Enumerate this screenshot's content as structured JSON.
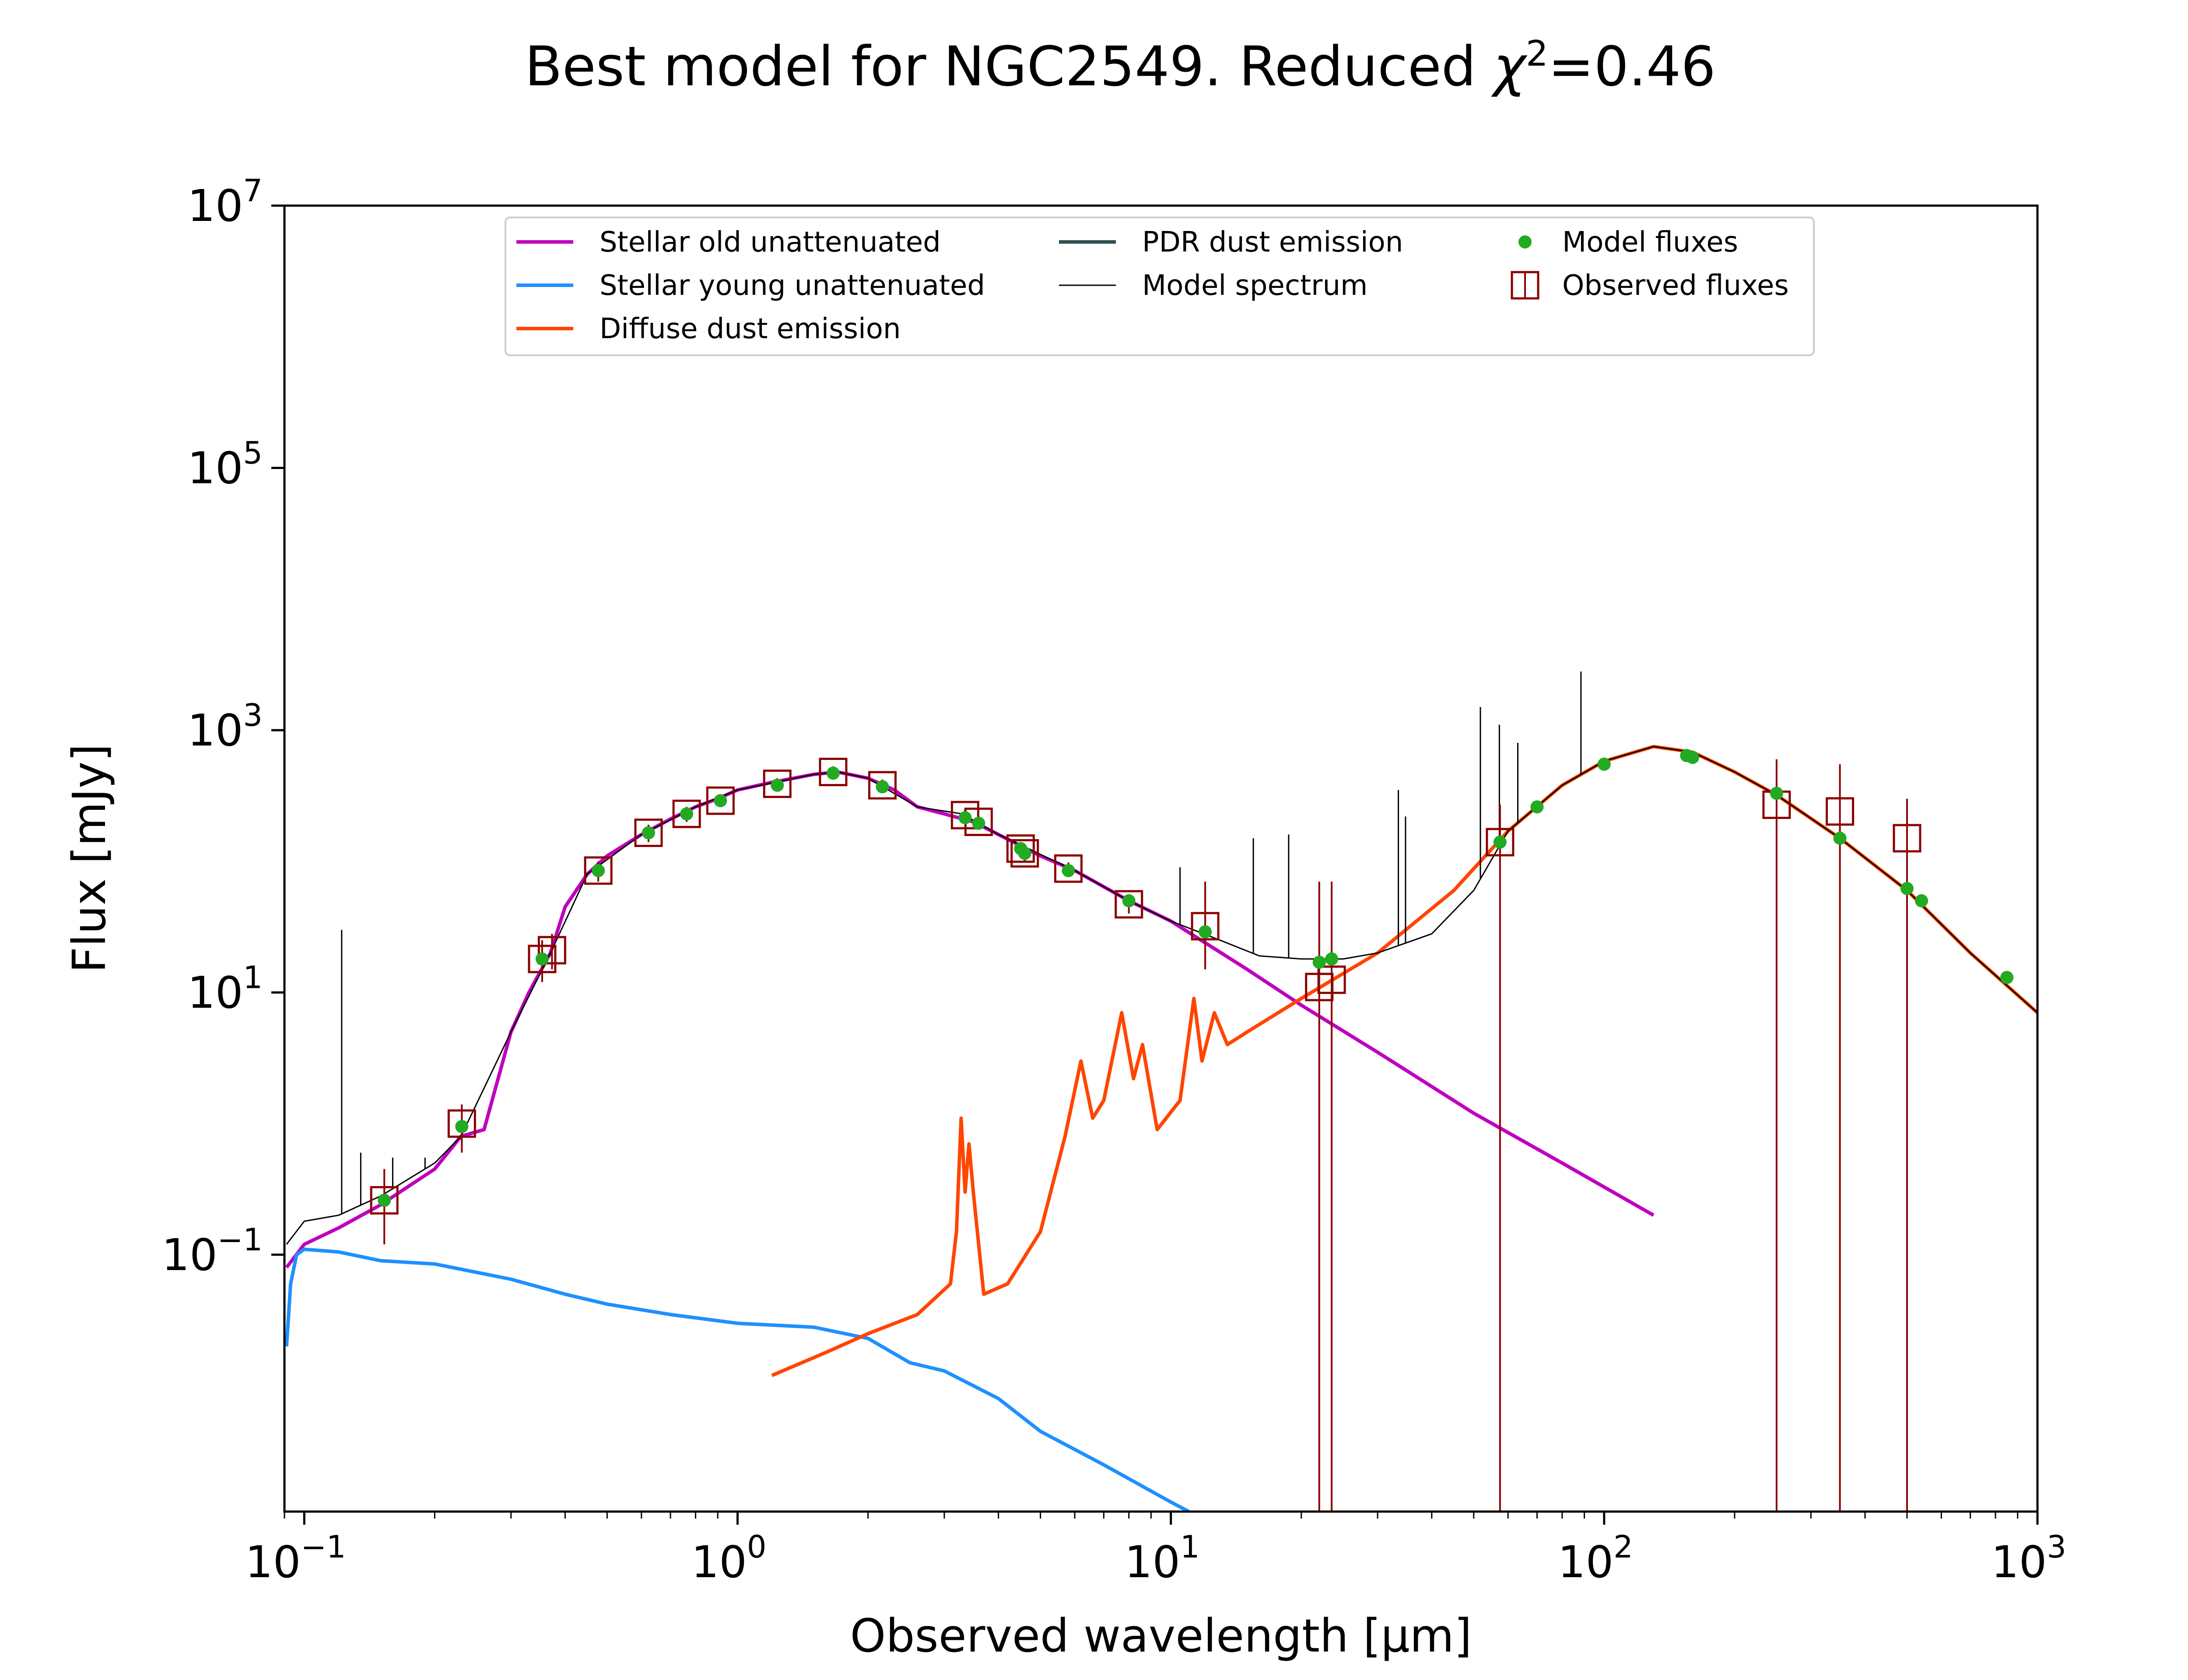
{
  "chart_data": {
    "type": "line",
    "title": "Best model for NGC2549. Reduced χ²=0.46",
    "title_parts": {
      "prefix": "Best model for NGC2549. Reduced ",
      "chi": "χ",
      "sup": "2",
      "suffix": "=0.46"
    },
    "xlabel": "Observed wavelength [μm]",
    "ylabel": "Flux [mJy]",
    "x_scale": "log",
    "y_scale": "log",
    "xlim": [
      0.09,
      1000
    ],
    "ylim": [
      0.0011,
      10000000
    ],
    "x_ticks": [
      {
        "value": 0.1,
        "base": "10",
        "exp": "−1"
      },
      {
        "value": 1,
        "base": "10",
        "exp": "0"
      },
      {
        "value": 10,
        "base": "10",
        "exp": "1"
      },
      {
        "value": 100,
        "base": "10",
        "exp": "2"
      },
      {
        "value": 1000,
        "base": "10",
        "exp": "3"
      }
    ],
    "y_ticks": [
      {
        "value": 0.1,
        "base": "10",
        "exp": "−1"
      },
      {
        "value": 10,
        "base": "10",
        "exp": "1"
      },
      {
        "value": 1000,
        "base": "10",
        "exp": "3"
      },
      {
        "value": 100000,
        "base": "10",
        "exp": "5"
      },
      {
        "value": 10000000,
        "base": "10",
        "exp": "7"
      }
    ],
    "grid": false,
    "legend_position": "top-center",
    "legend": [
      {
        "label": "Stellar old unattenuated",
        "color": "#bf00bf",
        "kind": "line"
      },
      {
        "label": "Stellar young unattenuated",
        "color": "#1e90ff",
        "kind": "line"
      },
      {
        "label": "Diffuse dust emission",
        "color": "#ff4500",
        "kind": "line"
      },
      {
        "label": "PDR dust emission",
        "color": "#2f4f4f",
        "kind": "line"
      },
      {
        "label": "Model spectrum",
        "color": "#000000",
        "kind": "thin-line"
      },
      {
        "label": "Model fluxes",
        "color": "#22aa22",
        "kind": "dot"
      },
      {
        "label": "Observed fluxes",
        "color": "#8b0000",
        "kind": "square"
      }
    ],
    "series": [
      {
        "name": "Stellar old unattenuated",
        "color": "#bf00bf",
        "points": [
          [
            0.091,
            0.08
          ],
          [
            0.1,
            0.12
          ],
          [
            0.12,
            0.16
          ],
          [
            0.15,
            0.24
          ],
          [
            0.2,
            0.45
          ],
          [
            0.23,
            0.8
          ],
          [
            0.26,
            0.9
          ],
          [
            0.3,
            5
          ],
          [
            0.33,
            10
          ],
          [
            0.37,
            20
          ],
          [
            0.4,
            45
          ],
          [
            0.45,
            80
          ],
          [
            0.5,
            110
          ],
          [
            0.6,
            160
          ],
          [
            0.7,
            210
          ],
          [
            0.8,
            260
          ],
          [
            0.9,
            300
          ],
          [
            1.0,
            350
          ],
          [
            1.2,
            400
          ],
          [
            1.5,
            460
          ],
          [
            1.7,
            480
          ],
          [
            2.0,
            430
          ],
          [
            2.3,
            350
          ],
          [
            2.6,
            260
          ],
          [
            3.0,
            230
          ],
          [
            3.5,
            200
          ],
          [
            4.0,
            160
          ],
          [
            5.0,
            110
          ],
          [
            6.0,
            85
          ],
          [
            8.0,
            50
          ],
          [
            10.0,
            35
          ],
          [
            15.0,
            15
          ],
          [
            20.0,
            8
          ],
          [
            30.0,
            3.5
          ],
          [
            50.0,
            1.2
          ],
          [
            80.0,
            0.5
          ],
          [
            130.0,
            0.2
          ]
        ]
      },
      {
        "name": "Stellar young unattenuated",
        "color": "#1e90ff",
        "points": [
          [
            0.091,
            0.02
          ],
          [
            0.093,
            0.06
          ],
          [
            0.096,
            0.1
          ],
          [
            0.1,
            0.11
          ],
          [
            0.12,
            0.105
          ],
          [
            0.15,
            0.09
          ],
          [
            0.2,
            0.085
          ],
          [
            0.3,
            0.065
          ],
          [
            0.4,
            0.05
          ],
          [
            0.5,
            0.042
          ],
          [
            0.7,
            0.035
          ],
          [
            1.0,
            0.03
          ],
          [
            1.5,
            0.028
          ],
          [
            2.0,
            0.023
          ],
          [
            2.5,
            0.015
          ],
          [
            3.0,
            0.013
          ],
          [
            4.0,
            0.008
          ],
          [
            5.0,
            0.0045
          ],
          [
            7.0,
            0.0025
          ],
          [
            10.0,
            0.0013
          ],
          [
            11.0,
            0.0011
          ]
        ]
      },
      {
        "name": "Diffuse dust emission",
        "color": "#ff4500",
        "points": [
          [
            1.2,
            0.012
          ],
          [
            1.6,
            0.018
          ],
          [
            2.0,
            0.025
          ],
          [
            2.6,
            0.035
          ],
          [
            3.1,
            0.06
          ],
          [
            3.2,
            0.15
          ],
          [
            3.28,
            1.1
          ],
          [
            3.35,
            0.3
          ],
          [
            3.42,
            0.7
          ],
          [
            3.5,
            0.3
          ],
          [
            3.7,
            0.05
          ],
          [
            4.2,
            0.06
          ],
          [
            5.0,
            0.15
          ],
          [
            5.7,
            0.8
          ],
          [
            6.2,
            3.0
          ],
          [
            6.6,
            1.1
          ],
          [
            7.0,
            1.5
          ],
          [
            7.7,
            7.0
          ],
          [
            8.2,
            2.2
          ],
          [
            8.6,
            4.0
          ],
          [
            9.3,
            0.9
          ],
          [
            10.5,
            1.5
          ],
          [
            11.3,
            9.0
          ],
          [
            11.8,
            3.0
          ],
          [
            12.6,
            7.0
          ],
          [
            13.5,
            4.0
          ],
          [
            15.0,
            5.0
          ],
          [
            20.0,
            9.0
          ],
          [
            30.0,
            20.0
          ],
          [
            45.0,
            60.0
          ],
          [
            60.0,
            170.0
          ],
          [
            80.0,
            380.0
          ],
          [
            100.0,
            580.0
          ],
          [
            130.0,
            750.0
          ],
          [
            160.0,
            680.0
          ],
          [
            200.0,
            480.0
          ],
          [
            250.0,
            320.0
          ],
          [
            350.0,
            150.0
          ],
          [
            500.0,
            60.0
          ],
          [
            700.0,
            20.0
          ],
          [
            1000.0,
            7.0
          ]
        ]
      },
      {
        "name": "Model spectrum",
        "color": "#000000",
        "points": [
          [
            0.091,
            0.12
          ],
          [
            0.1,
            0.18
          ],
          [
            0.12,
            0.2
          ],
          [
            0.15,
            0.28
          ],
          [
            0.2,
            0.5
          ],
          [
            0.23,
            0.8
          ],
          [
            0.3,
            5
          ],
          [
            0.37,
            20
          ],
          [
            0.45,
            80
          ],
          [
            0.6,
            160
          ],
          [
            0.8,
            260
          ],
          [
            1.0,
            350
          ],
          [
            1.5,
            460
          ],
          [
            1.7,
            480
          ],
          [
            2.0,
            430
          ],
          [
            2.6,
            260
          ],
          [
            3.3,
            230
          ],
          [
            4.0,
            160
          ],
          [
            6.0,
            85
          ],
          [
            8.0,
            50
          ],
          [
            10.0,
            35
          ],
          [
            13.0,
            25
          ],
          [
            16.0,
            19
          ],
          [
            20.0,
            18
          ],
          [
            25.0,
            18
          ],
          [
            30.0,
            20
          ],
          [
            40.0,
            28
          ],
          [
            50.0,
            60
          ],
          [
            60.0,
            170
          ],
          [
            80.0,
            380
          ],
          [
            100.0,
            580
          ],
          [
            130.0,
            750
          ],
          [
            160.0,
            680
          ],
          [
            200.0,
            480
          ],
          [
            250.0,
            320
          ],
          [
            350.0,
            150
          ],
          [
            500.0,
            60
          ],
          [
            700.0,
            20
          ],
          [
            1000.0,
            7
          ]
        ]
      }
    ],
    "model_spectrum_lines": [
      {
        "x": 0.122,
        "y": 30
      },
      {
        "x": 0.135,
        "y": 0.6
      },
      {
        "x": 0.16,
        "y": 0.55
      },
      {
        "x": 0.19,
        "y": 0.55
      },
      {
        "x": 10.5,
        "y": 90
      },
      {
        "x": 15.5,
        "y": 150
      },
      {
        "x": 18.7,
        "y": 160
      },
      {
        "x": 33.5,
        "y": 350
      },
      {
        "x": 34.8,
        "y": 220
      },
      {
        "x": 51.8,
        "y": 1500
      },
      {
        "x": 57.3,
        "y": 1100
      },
      {
        "x": 63.2,
        "y": 800
      },
      {
        "x": 88.4,
        "y": 2800
      }
    ],
    "model_fluxes": [
      {
        "x": 0.153,
        "y": 0.26
      },
      {
        "x": 0.231,
        "y": 0.95
      },
      {
        "x": 0.354,
        "y": 18
      },
      {
        "x": 0.477,
        "y": 85
      },
      {
        "x": 0.623,
        "y": 165
      },
      {
        "x": 0.763,
        "y": 230
      },
      {
        "x": 0.913,
        "y": 290
      },
      {
        "x": 1.235,
        "y": 380
      },
      {
        "x": 1.662,
        "y": 470
      },
      {
        "x": 2.159,
        "y": 370
      },
      {
        "x": 3.35,
        "y": 215
      },
      {
        "x": 3.6,
        "y": 195
      },
      {
        "x": 4.5,
        "y": 125
      },
      {
        "x": 4.6,
        "y": 115
      },
      {
        "x": 5.8,
        "y": 85
      },
      {
        "x": 8.0,
        "y": 50
      },
      {
        "x": 12.0,
        "y": 29
      },
      {
        "x": 22.0,
        "y": 17
      },
      {
        "x": 23.5,
        "y": 18
      },
      {
        "x": 57.5,
        "y": 140
      },
      {
        "x": 70.0,
        "y": 260
      },
      {
        "x": 100.0,
        "y": 550
      },
      {
        "x": 155.0,
        "y": 640
      },
      {
        "x": 160.0,
        "y": 620
      },
      {
        "x": 250.0,
        "y": 330
      },
      {
        "x": 350.0,
        "y": 150
      },
      {
        "x": 500.0,
        "y": 62
      },
      {
        "x": 540.0,
        "y": 50
      },
      {
        "x": 850.0,
        "y": 13
      }
    ],
    "observed_fluxes": [
      {
        "x": 0.153,
        "y": 0.26,
        "lo": 0.12,
        "hi": 0.45
      },
      {
        "x": 0.231,
        "y": 1.0,
        "lo": 0.6,
        "hi": 1.4
      },
      {
        "x": 0.354,
        "y": 18,
        "lo": 12,
        "hi": 25
      },
      {
        "x": 0.373,
        "y": 21,
        "lo": 15,
        "hi": 28
      },
      {
        "x": 0.477,
        "y": 85,
        "lo": 70,
        "hi": 100
      },
      {
        "x": 0.623,
        "y": 165,
        "lo": 140,
        "hi": 190
      },
      {
        "x": 0.763,
        "y": 230,
        "lo": 200,
        "hi": 260
      },
      {
        "x": 0.913,
        "y": 290,
        "lo": 260,
        "hi": 320
      },
      {
        "x": 1.235,
        "y": 390,
        "lo": 350,
        "hi": 430
      },
      {
        "x": 1.662,
        "y": 480,
        "lo": 430,
        "hi": 530
      },
      {
        "x": 2.159,
        "y": 380,
        "lo": 340,
        "hi": 420
      },
      {
        "x": 3.35,
        "y": 225,
        "lo": 200,
        "hi": 250
      },
      {
        "x": 3.6,
        "y": 200,
        "lo": 180,
        "hi": 220
      },
      {
        "x": 4.5,
        "y": 125,
        "lo": 110,
        "hi": 140
      },
      {
        "x": 4.6,
        "y": 115,
        "lo": 100,
        "hi": 130
      },
      {
        "x": 5.8,
        "y": 88,
        "lo": 78,
        "hi": 98
      },
      {
        "x": 8.0,
        "y": 47,
        "lo": 40,
        "hi": 54
      },
      {
        "x": 12.0,
        "y": 32,
        "lo": 15,
        "hi": 70
      },
      {
        "x": 22.0,
        "y": 11,
        "lo": 0.0011,
        "hi": 70
      },
      {
        "x": 23.5,
        "y": 12.5,
        "lo": 0.0011,
        "hi": 70
      },
      {
        "x": 57.5,
        "y": 140,
        "lo": 0.0011,
        "hi": 270
      },
      {
        "x": 250.0,
        "y": 270,
        "lo": 0.0011,
        "hi": 600
      },
      {
        "x": 350.0,
        "y": 240,
        "lo": 0.0011,
        "hi": 550
      },
      {
        "x": 500.0,
        "y": 150,
        "lo": 0.0011,
        "hi": 300
      }
    ]
  }
}
